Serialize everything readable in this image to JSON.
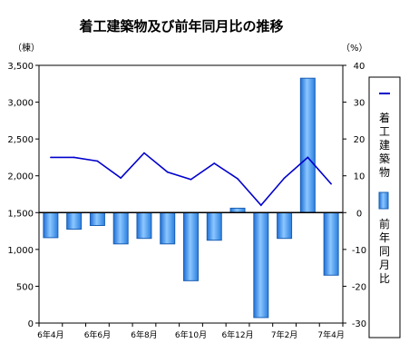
{
  "chart_data": {
    "type": "bar+line",
    "title": "着工建築物及び前年同月比の推移",
    "left_axis": {
      "unit": "（棟）",
      "ticks": [
        "3,500",
        "3,000",
        "2,500",
        "2,000",
        "1,500",
        "1,000",
        "500",
        "0"
      ],
      "tick_values": [
        3500,
        3000,
        2500,
        2000,
        1500,
        1000,
        500,
        0
      ],
      "range": [
        0,
        3500
      ]
    },
    "right_axis": {
      "unit": "（%）",
      "ticks": [
        "40",
        "30",
        "20",
        "10",
        "0",
        "-10",
        "-20",
        "-30"
      ],
      "tick_values": [
        40,
        30,
        20,
        10,
        0,
        -10,
        -20,
        -30
      ],
      "range": [
        -30,
        40
      ]
    },
    "x_labels": [
      "6年4月",
      "6年6月",
      "6年8月",
      "6年10月",
      "6年12月",
      "7年2月",
      "7年4月"
    ],
    "x_label_indices": [
      0,
      2,
      4,
      6,
      8,
      10,
      12
    ],
    "series": [
      {
        "name": "着工建築物",
        "kind": "line",
        "axis": "left",
        "color": "#0000cc",
        "values": [
          2250,
          2250,
          2200,
          1970,
          2310,
          2050,
          1950,
          2170,
          1960,
          1600,
          1970,
          2250,
          1890
        ]
      },
      {
        "name": "前年同月比",
        "kind": "bar",
        "axis": "right",
        "color": "#3d8ee8",
        "values": [
          -6.8,
          -4.5,
          -3.5,
          -8.5,
          -7.0,
          -8.5,
          -18.5,
          -7.5,
          1.2,
          -28.5,
          -7.0,
          36.5,
          -17.0
        ]
      }
    ]
  },
  "legend": {
    "line_label": [
      "着",
      "工",
      "建",
      "築",
      "物"
    ],
    "bar_label": [
      "前",
      "年",
      "同",
      "月",
      "比"
    ]
  }
}
